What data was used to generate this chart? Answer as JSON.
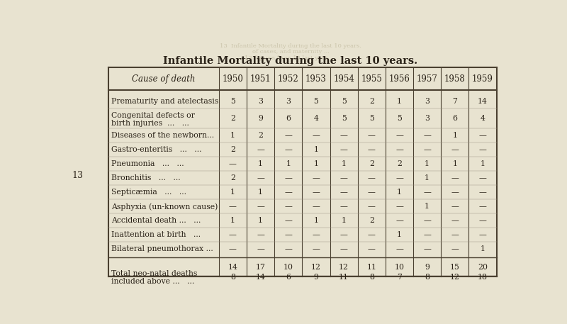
{
  "title": "Infantile Mortality during the last 10 years.",
  "title_fontsize": 10.5,
  "background_color": "#e8e3d0",
  "header_row": [
    "Cause of death",
    "1950",
    "1951",
    "1952",
    "1953",
    "1954",
    "1955",
    "1956",
    "1957",
    "1958",
    "1959"
  ],
  "rows": [
    [
      "Prematurity and atelectasis",
      "5",
      "3",
      "3",
      "5",
      "5",
      "2",
      "1",
      "3",
      "7",
      "14"
    ],
    [
      "Congenital defects or\n  birth injuries  ...   ...",
      "2",
      "9",
      "6",
      "4",
      "5",
      "5",
      "5",
      "3",
      "6",
      "4"
    ],
    [
      "Diseases of the newborn...",
      "1",
      "2",
      "—",
      "—",
      "—",
      "—",
      "—",
      "—",
      "1",
      "—"
    ],
    [
      "Gastro-enteritis   ...   ...",
      "2",
      "—",
      "—",
      "1",
      "—",
      "—",
      "—",
      "—",
      "—",
      "—"
    ],
    [
      "Pneumonia   ...   ...",
      "—",
      "1",
      "1",
      "1",
      "1",
      "2",
      "2",
      "1",
      "1",
      "1"
    ],
    [
      "Bronchitis   ...   ...",
      "2",
      "—",
      "—",
      "—",
      "—",
      "—",
      "—",
      "1",
      "—",
      "—"
    ],
    [
      "Septicæmia   ...   ...",
      "1",
      "1",
      "—",
      "—",
      "—",
      "—",
      "1",
      "—",
      "—",
      "—"
    ],
    [
      "Asphyxia (un-known cause)",
      "—",
      "—",
      "—",
      "—",
      "—",
      "—",
      "—",
      "1",
      "—",
      "—"
    ],
    [
      "Accidental death ...   ...",
      "1",
      "1",
      "—",
      "1",
      "1",
      "2",
      "—",
      "—",
      "—",
      "—"
    ],
    [
      "Inattention at birth   ...",
      "—",
      "—",
      "—",
      "—",
      "—",
      "—",
      "1",
      "—",
      "—",
      "—"
    ],
    [
      "Bilateral pneumothorax ...",
      "—",
      "—",
      "—",
      "—",
      "—",
      "—",
      "—",
      "—",
      "—",
      "1"
    ]
  ],
  "totals_row": [
    "",
    "14",
    "17",
    "10",
    "12",
    "12",
    "11",
    "10",
    "9",
    "15",
    "20"
  ],
  "neonatal_label": "Total neo-natal deaths\n  included above ...   ...",
  "neonatal_row": [
    "8",
    "14",
    "6",
    "9",
    "11",
    "8",
    "7",
    "8",
    "12",
    "18"
  ],
  "page_number": "13",
  "text_color": "#2a2218",
  "border_color": "#4a4030",
  "font_size": 7.8,
  "header_font_size": 8.5
}
